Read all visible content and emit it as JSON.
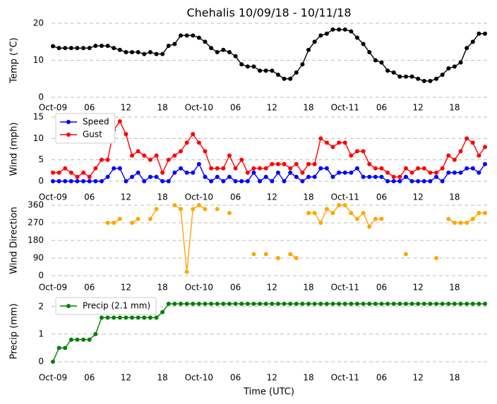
{
  "chart_data": [
    {
      "type": "line",
      "title": "Chehalis 10/09/18 - 10/11/18",
      "ylabel": "Temp (°C)",
      "x": [
        0,
        1,
        2,
        3,
        4,
        5,
        6,
        7,
        8,
        9,
        10,
        11,
        12,
        13,
        14,
        15,
        16,
        17,
        18,
        19,
        20,
        21,
        22,
        23,
        24,
        25,
        26,
        27,
        28,
        29,
        30,
        31,
        32,
        33,
        34,
        35,
        36,
        37,
        38,
        39,
        40,
        41,
        42,
        43,
        44,
        45,
        46,
        47,
        48,
        49,
        50,
        51,
        52,
        53,
        54,
        55,
        56,
        57,
        58,
        59,
        60,
        61,
        62,
        63,
        64,
        65,
        66,
        67,
        68,
        69,
        70,
        71
      ],
      "series": [
        {
          "color": "#000000",
          "values": [
            13.8,
            13.3,
            13.3,
            13.3,
            13.3,
            13.3,
            13.3,
            13.9,
            13.9,
            13.9,
            13.3,
            12.8,
            12.2,
            12.2,
            12.2,
            11.7,
            12.2,
            11.7,
            11.7,
            13.9,
            14.4,
            16.7,
            16.7,
            16.7,
            16.1,
            15,
            13.3,
            12.2,
            12.8,
            12.2,
            11.1,
            8.9,
            8.3,
            8.3,
            7.2,
            7.2,
            7.2,
            6.1,
            5,
            5,
            6.7,
            8.9,
            12.8,
            15,
            16.7,
            17.2,
            18.3,
            18.3,
            18.3,
            17.8,
            16.1,
            14.4,
            12.2,
            10,
            9.4,
            7.2,
            6.7,
            5.6,
            5.6,
            5.6,
            5,
            4.4,
            4.4,
            5,
            6.1,
            7.8,
            8.3,
            9.4,
            13.3,
            15,
            17.2,
            17.2
          ]
        }
      ],
      "xlim": [
        0,
        71
      ],
      "xticks": [
        {
          "value": 0,
          "label": "Oct-09"
        },
        {
          "value": 6,
          "label": "06"
        },
        12,
        18,
        {
          "value": 24,
          "label": "Oct-10"
        },
        {
          "value": 30,
          "label": "06"
        },
        {
          "value": 36,
          "label": "12"
        },
        {
          "value": 42,
          "label": "18"
        },
        {
          "value": 48,
          "label": "Oct-11"
        },
        {
          "value": 54,
          "label": "06"
        },
        {
          "value": 60,
          "label": "12"
        },
        {
          "value": 66,
          "label": "18"
        }
      ],
      "ylim": [
        0,
        20
      ],
      "yticks": [
        0,
        10,
        20
      ],
      "grid": true
    },
    {
      "type": "line",
      "ylabel": "Wind (mph)",
      "legend": "upper left",
      "x": [
        0,
        1,
        2,
        3,
        4,
        5,
        6,
        7,
        8,
        9,
        10,
        11,
        12,
        13,
        14,
        15,
        16,
        17,
        18,
        19,
        20,
        21,
        22,
        23,
        24,
        25,
        26,
        27,
        28,
        29,
        30,
        31,
        32,
        33,
        34,
        35,
        36,
        37,
        38,
        39,
        40,
        41,
        42,
        43,
        44,
        45,
        46,
        47,
        48,
        49,
        50,
        51,
        52,
        53,
        54,
        55,
        56,
        57,
        58,
        59,
        60,
        61,
        62,
        63,
        64,
        65,
        66,
        67,
        68,
        69,
        70,
        71
      ],
      "series": [
        {
          "name": "Speed",
          "color": "#0000ff",
          "values": [
            0,
            0,
            0,
            0,
            0,
            0,
            0,
            0,
            0,
            1,
            3,
            3,
            0,
            1,
            2,
            0,
            1,
            1,
            0,
            0,
            2,
            3,
            2,
            2,
            4,
            1,
            0,
            1,
            0,
            1,
            0,
            0,
            0,
            2,
            0,
            1,
            0,
            2,
            0,
            2,
            1,
            0,
            1,
            1,
            3,
            3,
            1,
            2,
            2,
            2,
            3,
            1,
            1,
            1,
            1,
            0,
            0,
            0,
            1,
            0,
            0,
            0,
            0,
            1,
            0,
            2,
            2,
            2,
            3,
            3,
            2,
            4
          ]
        },
        {
          "name": "Gust",
          "color": "#ff0000",
          "values": [
            2,
            2,
            3,
            2,
            1,
            2,
            1,
            3,
            5,
            5,
            12,
            14,
            11,
            6,
            7,
            6,
            5,
            6,
            2,
            5,
            6,
            7,
            9,
            11,
            9,
            7,
            3,
            3,
            3,
            6,
            3,
            5,
            2,
            3,
            3,
            3,
            4,
            4,
            4,
            3,
            4,
            2,
            4,
            4,
            10,
            9,
            8,
            9,
            9,
            6,
            7,
            7,
            4,
            3,
            3,
            2,
            1,
            1,
            3,
            2,
            3,
            3,
            2,
            2,
            3,
            6,
            5,
            7,
            10,
            9,
            6,
            8
          ]
        }
      ],
      "xlim": [
        0,
        71
      ],
      "xticks": [
        {
          "value": 0,
          "label": "Oct-09"
        },
        {
          "value": 6,
          "label": "06"
        },
        12,
        18,
        {
          "value": 24,
          "label": "Oct-10"
        },
        {
          "value": 30,
          "label": "06"
        },
        {
          "value": 36,
          "label": "12"
        },
        {
          "value": 42,
          "label": "18"
        },
        {
          "value": 48,
          "label": "Oct-11"
        },
        {
          "value": 54,
          "label": "06"
        },
        {
          "value": 60,
          "label": "12"
        },
        {
          "value": 66,
          "label": "18"
        }
      ],
      "ylim": [
        0,
        15
      ],
      "yticks": [
        0,
        5,
        10,
        15
      ],
      "grid": true
    },
    {
      "type": "line",
      "ylabel": "Wind Direction",
      "x": [
        0,
        1,
        2,
        3,
        4,
        5,
        6,
        7,
        8,
        9,
        10,
        11,
        12,
        13,
        14,
        15,
        16,
        17,
        18,
        19,
        20,
        21,
        22,
        23,
        24,
        25,
        26,
        27,
        28,
        29,
        30,
        31,
        32,
        33,
        34,
        35,
        36,
        37,
        38,
        39,
        40,
        41,
        42,
        43,
        44,
        45,
        46,
        47,
        48,
        49,
        50,
        51,
        52,
        53,
        54,
        55,
        56,
        57,
        58,
        59,
        60,
        61,
        62,
        63,
        64,
        65,
        66,
        67,
        68,
        69,
        70,
        71
      ],
      "series": [
        {
          "color": "#ffa500",
          "values": [
            null,
            null,
            null,
            null,
            null,
            null,
            null,
            null,
            null,
            270,
            270,
            290,
            null,
            270,
            290,
            null,
            290,
            340,
            null,
            null,
            360,
            340,
            20,
            340,
            360,
            340,
            null,
            340,
            null,
            320,
            null,
            null,
            null,
            110,
            null,
            110,
            null,
            90,
            null,
            110,
            90,
            null,
            320,
            320,
            270,
            340,
            320,
            360,
            360,
            320,
            290,
            320,
            250,
            290,
            290,
            null,
            null,
            null,
            110,
            null,
            null,
            null,
            null,
            90,
            null,
            290,
            270,
            270,
            270,
            290,
            320,
            320
          ]
        }
      ],
      "xlim": [
        0,
        71
      ],
      "xticks": [
        {
          "value": 0,
          "label": "Oct-09"
        },
        {
          "value": 6,
          "label": "06"
        },
        12,
        18,
        {
          "value": 24,
          "label": "Oct-10"
        },
        {
          "value": 30,
          "label": "06"
        },
        {
          "value": 36,
          "label": "12"
        },
        {
          "value": 42,
          "label": "18"
        },
        {
          "value": 48,
          "label": "Oct-11"
        },
        {
          "value": 54,
          "label": "06"
        },
        {
          "value": 60,
          "label": "12"
        },
        {
          "value": 66,
          "label": "18"
        }
      ],
      "ylim": [
        0,
        360
      ],
      "yticks": [
        0,
        90,
        180,
        270,
        360
      ],
      "grid": true
    },
    {
      "type": "line",
      "ylabel": "Precip (mm)",
      "xlabel": "Time (UTC)",
      "legend": "upper left",
      "x": [
        0,
        1,
        2,
        3,
        4,
        5,
        6,
        7,
        8,
        9,
        10,
        11,
        12,
        13,
        14,
        15,
        16,
        17,
        18,
        19,
        20,
        21,
        22,
        23,
        24,
        25,
        26,
        27,
        28,
        29,
        30,
        31,
        32,
        33,
        34,
        35,
        36,
        37,
        38,
        39,
        40,
        41,
        42,
        43,
        44,
        45,
        46,
        47,
        48,
        49,
        50,
        51,
        52,
        53,
        54,
        55,
        56,
        57,
        58,
        59,
        60,
        61,
        62,
        63,
        64,
        65,
        66,
        67,
        68,
        69,
        70,
        71
      ],
      "series": [
        {
          "name": "Precip (2.1 mm)",
          "color": "#008000",
          "values": [
            0,
            0.5,
            0.5,
            0.8,
            0.8,
            0.8,
            0.8,
            1.0,
            1.6,
            1.6,
            1.6,
            1.6,
            1.6,
            1.6,
            1.6,
            1.6,
            1.6,
            1.6,
            1.8,
            2.1,
            2.1,
            2.1,
            2.1,
            2.1,
            2.1,
            2.1,
            2.1,
            2.1,
            2.1,
            2.1,
            2.1,
            2.1,
            2.1,
            2.1,
            2.1,
            2.1,
            2.1,
            2.1,
            2.1,
            2.1,
            2.1,
            2.1,
            2.1,
            2.1,
            2.1,
            2.1,
            2.1,
            2.1,
            2.1,
            2.1,
            2.1,
            2.1,
            2.1,
            2.1,
            2.1,
            2.1,
            2.1,
            2.1,
            2.1,
            2.1,
            2.1,
            2.1,
            2.1,
            2.1,
            2.1,
            2.1,
            2.1,
            2.1,
            2.1,
            2.1,
            2.1,
            2.1
          ]
        }
      ],
      "xlim": [
        0,
        71
      ],
      "xticks": [
        {
          "value": 0,
          "label": "Oct-09"
        },
        {
          "value": 6,
          "label": "06"
        },
        12,
        18,
        {
          "value": 24,
          "label": "Oct-10"
        },
        {
          "value": 30,
          "label": "06"
        },
        {
          "value": 36,
          "label": "12"
        },
        {
          "value": 42,
          "label": "18"
        },
        {
          "value": 48,
          "label": "Oct-11"
        },
        {
          "value": 54,
          "label": "06"
        },
        {
          "value": 60,
          "label": "12"
        },
        {
          "value": 66,
          "label": "18"
        }
      ],
      "ylim": [
        0,
        2.2
      ],
      "yticks": [
        0,
        1,
        2
      ],
      "grid": true
    }
  ]
}
